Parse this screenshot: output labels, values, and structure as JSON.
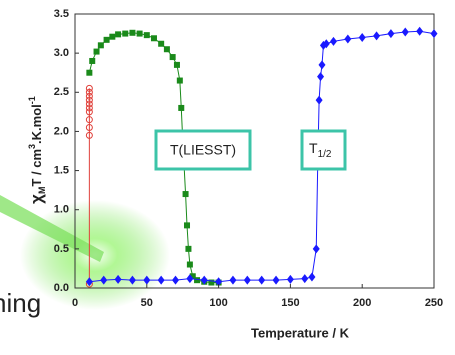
{
  "chart_data": {
    "type": "scatter",
    "xlabel": "Temperature / K",
    "ylabel_parts": [
      "χ",
      "M",
      "T / cm",
      "3",
      ".K.mol",
      "-1"
    ],
    "annotations": [
      "T(LIESST)",
      "T",
      "1/2"
    ],
    "side_text": "hing",
    "xlim": [
      0,
      250
    ],
    "xticks": [
      0,
      50,
      100,
      150,
      200,
      250
    ],
    "ylim": [
      0,
      3.5
    ],
    "yticks": [
      {
        "value": 0,
        "label": "0.0"
      },
      0.5,
      {
        "value": 1,
        "label": "1.0"
      },
      1.5,
      {
        "value": 2,
        "label": "2.0"
      },
      2.5,
      {
        "value": 3,
        "label": "3.0"
      },
      3.5
    ],
    "series": [
      {
        "color": "#e0403a",
        "marker": "circle",
        "x": [
          10,
          10,
          10,
          10,
          10,
          10,
          10,
          10,
          10,
          10,
          10
        ],
        "values": [
          0.05,
          1.95,
          2.05,
          2.15,
          2.25,
          2.3,
          2.35,
          2.4,
          2.45,
          2.5,
          2.55
        ]
      },
      {
        "color": "#1a8a1a",
        "marker": "square",
        "x": [
          10,
          12,
          15,
          18,
          22,
          26,
          30,
          35,
          40,
          45,
          50,
          55,
          60,
          64,
          68,
          71,
          73,
          74,
          75,
          76,
          77,
          78,
          79,
          80,
          82,
          85,
          90,
          95,
          100
        ],
        "values": [
          2.75,
          2.9,
          3.02,
          3.1,
          3.17,
          3.21,
          3.24,
          3.25,
          3.26,
          3.25,
          3.23,
          3.19,
          3.12,
          3.05,
          2.95,
          2.85,
          2.65,
          2.3,
          1.9,
          1.55,
          1.2,
          0.8,
          0.5,
          0.3,
          0.15,
          0.1,
          0.08,
          0.07,
          0.07
        ]
      },
      {
        "color": "#1a1aff",
        "marker": "diamond",
        "x": [
          10,
          20,
          30,
          40,
          50,
          60,
          70,
          80,
          90,
          100,
          110,
          120,
          130,
          140,
          150,
          160,
          165,
          168,
          169,
          170,
          171,
          172,
          173,
          175,
          180,
          190,
          200,
          210,
          220,
          230,
          240,
          250
        ],
        "values": [
          0.08,
          0.1,
          0.11,
          0.1,
          0.1,
          0.1,
          0.1,
          0.12,
          0.1,
          0.08,
          0.1,
          0.1,
          0.1,
          0.1,
          0.11,
          0.12,
          0.14,
          0.5,
          1.55,
          2.4,
          2.7,
          2.85,
          3.1,
          3.12,
          3.15,
          3.18,
          3.2,
          3.22,
          3.25,
          3.27,
          3.28,
          3.25
        ]
      }
    ]
  }
}
